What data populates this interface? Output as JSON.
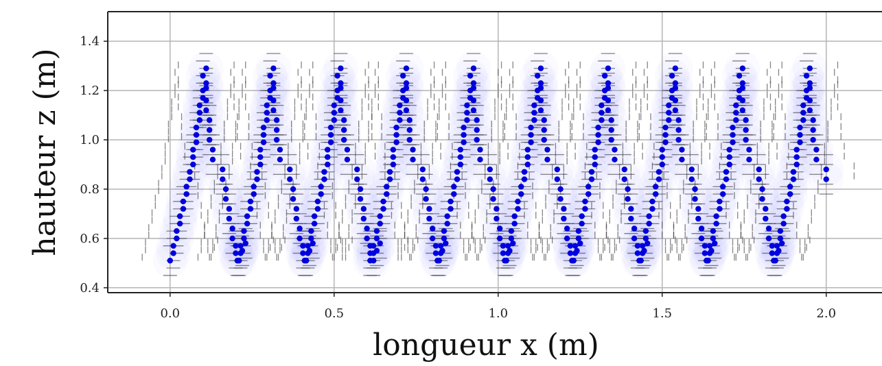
{
  "chart_data": {
    "type": "scatter",
    "title": "",
    "xlabel": "longueur x (m)",
    "ylabel": "hauteur z (m)",
    "xlim": [
      -0.19,
      2.17
    ],
    "ylim": [
      0.38,
      1.52
    ],
    "xticks": [
      0.0,
      0.5,
      1.0,
      1.5,
      2.0
    ],
    "xtick_labels": [
      "0.0",
      "0.5",
      "1.0",
      "1.5",
      "2.0"
    ],
    "yticks": [
      0.4,
      0.6,
      0.8,
      1.0,
      1.2,
      1.4
    ],
    "ytick_labels": [
      "0.4",
      "0.6",
      "0.8",
      "1.0",
      "1.2",
      "1.4"
    ],
    "grid": true,
    "legend": "none",
    "marker_color": "#0000dd",
    "halo_color": "#6a6af5",
    "error_bar_halfwidth_x": 0.085,
    "error_bar_halfwidth_z": 0.06,
    "series": [
      {
        "values": [
          {
            "x": 0.0,
            "z": 0.51
          },
          {
            "x": 0.01,
            "z": 0.54
          },
          {
            "x": 0.01,
            "z": 0.57
          },
          {
            "x": 0.02,
            "z": 0.6
          },
          {
            "x": 0.02,
            "z": 0.63
          },
          {
            "x": 0.03,
            "z": 0.66
          },
          {
            "x": 0.03,
            "z": 0.69
          },
          {
            "x": 0.04,
            "z": 0.72
          },
          {
            "x": 0.04,
            "z": 0.75
          },
          {
            "x": 0.05,
            "z": 0.78
          },
          {
            "x": 0.05,
            "z": 0.81
          },
          {
            "x": 0.06,
            "z": 0.84
          },
          {
            "x": 0.06,
            "z": 0.87
          },
          {
            "x": 0.07,
            "z": 0.9
          },
          {
            "x": 0.07,
            "z": 0.93
          },
          {
            "x": 0.07,
            "z": 0.96
          },
          {
            "x": 0.08,
            "z": 0.99
          },
          {
            "x": 0.08,
            "z": 1.02
          },
          {
            "x": 0.08,
            "z": 1.05
          },
          {
            "x": 0.09,
            "z": 1.08
          },
          {
            "x": 0.09,
            "z": 1.11
          },
          {
            "x": 0.09,
            "z": 1.14
          },
          {
            "x": 0.1,
            "z": 1.17
          },
          {
            "x": 0.1,
            "z": 1.2
          },
          {
            "x": 0.11,
            "z": 1.23
          },
          {
            "x": 0.1,
            "z": 1.26
          },
          {
            "x": 0.11,
            "z": 1.29
          },
          {
            "x": 0.16,
            "z": 0.88
          },
          {
            "x": 0.16,
            "z": 0.84
          },
          {
            "x": 0.17,
            "z": 0.8
          },
          {
            "x": 0.17,
            "z": 0.76
          },
          {
            "x": 0.18,
            "z": 0.72
          },
          {
            "x": 0.18,
            "z": 0.68
          },
          {
            "x": 0.19,
            "z": 0.64
          },
          {
            "x": 0.19,
            "z": 0.6
          },
          {
            "x": 0.2,
            "z": 0.57
          },
          {
            "x": 0.2,
            "z": 0.54
          },
          {
            "x": 0.21,
            "z": 0.51
          },
          {
            "x": 0.22,
            "z": 0.55
          },
          {
            "x": 0.23,
            "z": 0.58
          },
          {
            "x": 0.13,
            "z": 0.92
          },
          {
            "x": 0.13,
            "z": 0.96
          },
          {
            "x": 0.12,
            "z": 1.0
          },
          {
            "x": 0.12,
            "z": 1.04
          },
          {
            "x": 0.12,
            "z": 1.08
          },
          {
            "x": 0.11,
            "z": 1.12
          },
          {
            "x": 0.11,
            "z": 1.16
          },
          {
            "x": 0.11,
            "z": 1.21
          }
        ]
      }
    ]
  }
}
